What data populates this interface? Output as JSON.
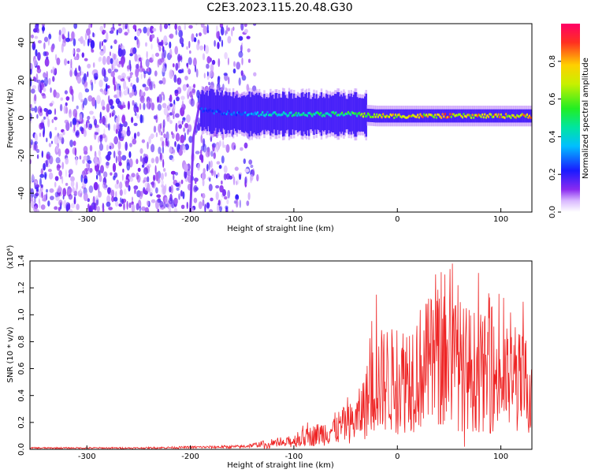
{
  "figure": {
    "title": "C2E3.2023.115.20.48.G30"
  },
  "colorbar": {
    "label": "Normalized spectral amplitude",
    "ticks": [
      "0.0",
      "0.2",
      "0.4",
      "0.6",
      "0.8"
    ],
    "tick_values": [
      0.0,
      0.2,
      0.4,
      0.6,
      0.8
    ]
  },
  "chart_data": [
    {
      "type": "heatmap",
      "xlabel": "Height of straight line (km)",
      "ylabel": "Frequency (Hz)",
      "xlim": [
        -355,
        130
      ],
      "ylim": [
        -50,
        50
      ],
      "x_ticks": [
        -300,
        -200,
        -100,
        0,
        100
      ],
      "x_tick_labels": [
        "-300",
        "-200",
        "-100",
        "0",
        "100"
      ],
      "y_ticks": [
        -40,
        -20,
        0,
        20,
        40
      ],
      "y_tick_labels": [
        "-40",
        "-20",
        "0",
        "20",
        "40"
      ],
      "colormap": "rainbow (white → violet → blue → cyan → green → yellow → red)",
      "noise_region_x": [
        -355,
        -135
      ],
      "vertical_streak_x": -197,
      "signal_band": [
        {
          "x": -190,
          "f": 4,
          "amp": 0.25
        },
        {
          "x": -170,
          "f": 3,
          "amp": 0.3
        },
        {
          "x": -150,
          "f": 2,
          "amp": 0.3
        },
        {
          "x": -120,
          "f": 2,
          "amp": 0.45
        },
        {
          "x": -80,
          "f": 2,
          "amp": 0.5
        },
        {
          "x": -45,
          "f": 2,
          "amp": 0.55
        },
        {
          "x": -20,
          "f": 1,
          "amp": 0.75
        },
        {
          "x": 10,
          "f": 1,
          "amp": 0.8
        },
        {
          "x": 50,
          "f": 1,
          "amp": 0.85
        },
        {
          "x": 90,
          "f": 1,
          "amp": 0.8
        },
        {
          "x": 125,
          "f": 1,
          "amp": 0.8
        }
      ]
    },
    {
      "type": "line",
      "xlabel": "Height of straight line (km)",
      "ylabel": "SNR (10 * v/v)",
      "y_multiplier": "(x10⁴)",
      "xlim": [
        -355,
        130
      ],
      "ylim": [
        0,
        1.4
      ],
      "x_ticks": [
        -300,
        -200,
        -100,
        0,
        100
      ],
      "x_tick_labels": [
        "-300",
        "-200",
        "-100",
        "0",
        "100"
      ],
      "y_ticks": [
        0.0,
        0.2,
        0.4,
        0.6,
        0.8,
        1.0,
        1.2,
        1.4
      ],
      "y_tick_labels": [
        "0.0",
        "0.2",
        "0.4",
        "0.6",
        "0.8",
        "1.0",
        "1.2",
        "1.4"
      ],
      "color": "#ee2222",
      "envelope": {
        "x": [
          -355,
          -250,
          -150,
          -110,
          -70,
          -40,
          -30,
          -20,
          -10,
          0,
          10,
          30,
          50,
          70,
          90,
          110,
          130
        ],
        "y": [
          0.01,
          0.01,
          0.02,
          0.06,
          0.18,
          0.3,
          0.5,
          0.7,
          0.75,
          0.7,
          0.8,
          0.9,
          0.95,
          0.85,
          0.78,
          0.72,
          0.68
        ]
      },
      "peaks": [
        {
          "x": -20,
          "y": 1.15
        },
        {
          "x": 37,
          "y": 1.3
        },
        {
          "x": 53,
          "y": 1.38
        },
        {
          "x": 65,
          "y": 1.4
        }
      ],
      "dips": [
        {
          "x": 65,
          "y": 0.02
        },
        {
          "x": 12,
          "y": 0.22
        }
      ]
    }
  ]
}
